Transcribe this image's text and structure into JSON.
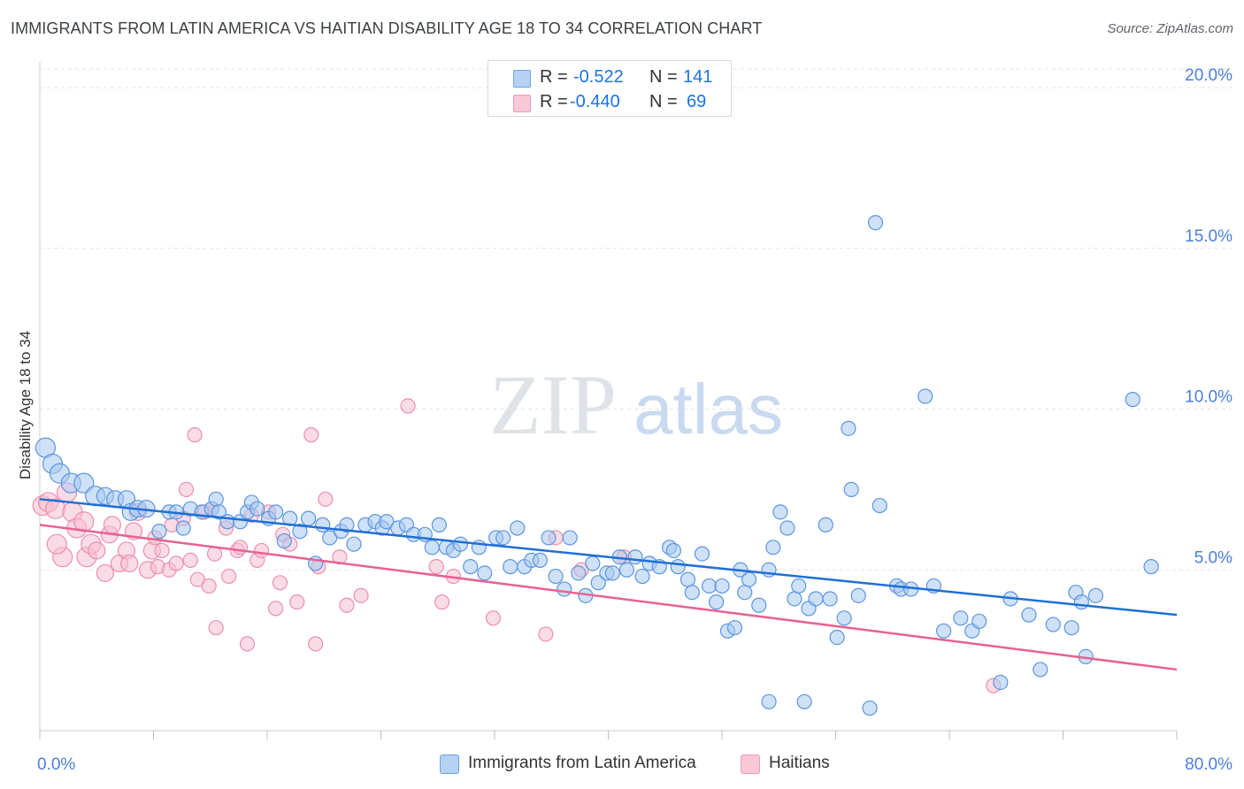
{
  "header": {
    "title": "IMMIGRANTS FROM LATIN AMERICA VS HAITIAN DISABILITY AGE 18 TO 34 CORRELATION CHART",
    "source": "Source: ZipAtlas.com"
  },
  "legend": {
    "rows": [
      {
        "r_label": "R =",
        "r_value": "-0.522",
        "n_label": "N =",
        "n_value": "141"
      },
      {
        "r_label": "R =",
        "r_value": "-0.440",
        "n_label": "N =",
        "n_value": "69"
      }
    ]
  },
  "watermark": {
    "zip": "ZIP",
    "atlas": "atlas"
  },
  "colors": {
    "blue_fill": "#a8c8f0",
    "blue_stroke": "#5b95e0",
    "blue_line": "#1f6fd6",
    "pink_fill": "#f6bfd0",
    "pink_stroke": "#ec8fae",
    "pink_line": "#e8628f",
    "tick_label": "#4a7fd8"
  },
  "chart_data": {
    "type": "scatter",
    "title": "IMMIGRANTS FROM LATIN AMERICA VS HAITIAN DISABILITY AGE 18 TO 34 CORRELATION CHART",
    "xlabel": "",
    "ylabel": "Disability Age 18 to 34",
    "xlim": [
      0,
      80
    ],
    "ylim": [
      0,
      20.8
    ],
    "x_tick_labels": [
      "0.0%",
      "80.0%"
    ],
    "y_ticks": [
      5,
      10,
      15,
      20
    ],
    "y_tick_labels": [
      "5.0%",
      "10.0%",
      "15.0%",
      "20.0%"
    ],
    "grid": "horizontal dashed",
    "legend_position": "top-center",
    "series": [
      {
        "name": "Immigrants from Latin America",
        "trend": {
          "x0": 0,
          "y0": 7.2,
          "x1": 80,
          "y1": 3.6
        },
        "points": [
          [
            0.4,
            8.8
          ],
          [
            0.9,
            8.3
          ],
          [
            1.4,
            8.0
          ],
          [
            2.2,
            7.7
          ],
          [
            3.1,
            7.7
          ],
          [
            3.9,
            7.3
          ],
          [
            4.6,
            7.3
          ],
          [
            5.3,
            7.2
          ],
          [
            6.1,
            7.2
          ],
          [
            6.4,
            6.8
          ],
          [
            6.9,
            6.9
          ],
          [
            7.5,
            6.9
          ],
          [
            8.4,
            6.2
          ],
          [
            9.1,
            6.8
          ],
          [
            9.6,
            6.8
          ],
          [
            10.1,
            6.3
          ],
          [
            10.6,
            6.9
          ],
          [
            11.4,
            6.8
          ],
          [
            12.1,
            6.9
          ],
          [
            12.4,
            7.2
          ],
          [
            12.6,
            6.8
          ],
          [
            13.2,
            6.5
          ],
          [
            14.1,
            6.5
          ],
          [
            14.6,
            6.8
          ],
          [
            14.9,
            7.1
          ],
          [
            15.3,
            6.9
          ],
          [
            16.1,
            6.6
          ],
          [
            16.6,
            6.8
          ],
          [
            17.2,
            5.9
          ],
          [
            17.6,
            6.6
          ],
          [
            18.3,
            6.2
          ],
          [
            18.9,
            6.6
          ],
          [
            19.4,
            5.2
          ],
          [
            19.9,
            6.4
          ],
          [
            20.4,
            6.0
          ],
          [
            21.2,
            6.2
          ],
          [
            21.6,
            6.4
          ],
          [
            22.1,
            5.8
          ],
          [
            22.9,
            6.4
          ],
          [
            23.6,
            6.5
          ],
          [
            24.1,
            6.3
          ],
          [
            24.4,
            6.5
          ],
          [
            25.2,
            6.3
          ],
          [
            25.8,
            6.4
          ],
          [
            26.3,
            6.1
          ],
          [
            27.1,
            6.1
          ],
          [
            27.6,
            5.7
          ],
          [
            28.1,
            6.4
          ],
          [
            28.6,
            5.7
          ],
          [
            29.1,
            5.6
          ],
          [
            29.6,
            5.8
          ],
          [
            30.3,
            5.1
          ],
          [
            30.9,
            5.7
          ],
          [
            31.3,
            4.9
          ],
          [
            32.1,
            6.0
          ],
          [
            32.6,
            6.0
          ],
          [
            33.1,
            5.1
          ],
          [
            33.6,
            6.3
          ],
          [
            34.1,
            5.1
          ],
          [
            34.6,
            5.3
          ],
          [
            35.2,
            5.3
          ],
          [
            35.8,
            6.0
          ],
          [
            36.3,
            4.8
          ],
          [
            36.9,
            4.4
          ],
          [
            37.3,
            6.0
          ],
          [
            37.9,
            4.9
          ],
          [
            38.4,
            4.2
          ],
          [
            38.9,
            5.2
          ],
          [
            39.3,
            4.6
          ],
          [
            39.9,
            4.9
          ],
          [
            40.3,
            4.9
          ],
          [
            40.8,
            5.4
          ],
          [
            41.3,
            5.0
          ],
          [
            41.9,
            5.4
          ],
          [
            42.4,
            4.8
          ],
          [
            42.9,
            5.2
          ],
          [
            43.6,
            5.1
          ],
          [
            44.3,
            5.7
          ],
          [
            44.6,
            5.6
          ],
          [
            44.9,
            5.1
          ],
          [
            45.6,
            4.7
          ],
          [
            45.9,
            4.3
          ],
          [
            46.6,
            5.5
          ],
          [
            47.1,
            4.5
          ],
          [
            47.6,
            4.0
          ],
          [
            48.0,
            4.5
          ],
          [
            48.4,
            3.1
          ],
          [
            48.9,
            3.2
          ],
          [
            49.3,
            5.0
          ],
          [
            49.6,
            4.3
          ],
          [
            49.9,
            4.7
          ],
          [
            50.6,
            3.9
          ],
          [
            51.3,
            5.0
          ],
          [
            51.6,
            5.7
          ],
          [
            52.1,
            6.8
          ],
          [
            52.6,
            6.3
          ],
          [
            53.1,
            4.1
          ],
          [
            53.4,
            4.5
          ],
          [
            54.1,
            3.8
          ],
          [
            54.6,
            4.1
          ],
          [
            55.3,
            6.4
          ],
          [
            55.6,
            4.1
          ],
          [
            56.1,
            2.9
          ],
          [
            56.6,
            3.5
          ],
          [
            56.9,
            9.4
          ],
          [
            57.1,
            7.5
          ],
          [
            57.6,
            4.2
          ],
          [
            58.4,
            0.7
          ],
          [
            58.8,
            15.8
          ],
          [
            59.1,
            7.0
          ],
          [
            60.3,
            4.5
          ],
          [
            60.6,
            4.4
          ],
          [
            61.3,
            4.4
          ],
          [
            62.3,
            10.4
          ],
          [
            62.9,
            4.5
          ],
          [
            63.6,
            3.1
          ],
          [
            64.8,
            3.5
          ],
          [
            65.6,
            3.1
          ],
          [
            66.1,
            3.4
          ],
          [
            67.6,
            1.5
          ],
          [
            68.3,
            4.1
          ],
          [
            69.6,
            3.6
          ],
          [
            70.4,
            1.9
          ],
          [
            71.3,
            3.3
          ],
          [
            72.6,
            3.2
          ],
          [
            72.9,
            4.3
          ],
          [
            73.3,
            4.0
          ],
          [
            73.6,
            2.3
          ],
          [
            74.3,
            4.2
          ],
          [
            76.9,
            10.3
          ],
          [
            78.2,
            5.1
          ],
          [
            53.8,
            0.9
          ],
          [
            51.3,
            0.9
          ]
        ]
      },
      {
        "name": "Haitians",
        "trend": {
          "x0": 0,
          "y0": 6.4,
          "x1": 80,
          "y1": 1.9
        },
        "points": [
          [
            0.2,
            7.0
          ],
          [
            0.6,
            7.1
          ],
          [
            1.1,
            6.9
          ],
          [
            1.6,
            5.4
          ],
          [
            1.9,
            7.4
          ],
          [
            2.3,
            6.8
          ],
          [
            2.6,
            6.3
          ],
          [
            3.1,
            6.5
          ],
          [
            3.3,
            5.4
          ],
          [
            3.6,
            5.8
          ],
          [
            4.0,
            5.6
          ],
          [
            4.6,
            4.9
          ],
          [
            4.9,
            6.1
          ],
          [
            5.1,
            6.4
          ],
          [
            5.6,
            5.2
          ],
          [
            6.1,
            5.6
          ],
          [
            6.3,
            5.2
          ],
          [
            6.6,
            6.2
          ],
          [
            6.9,
            6.8
          ],
          [
            7.6,
            5.0
          ],
          [
            7.9,
            5.6
          ],
          [
            8.1,
            6.0
          ],
          [
            8.3,
            5.1
          ],
          [
            8.6,
            5.6
          ],
          [
            9.1,
            5.0
          ],
          [
            9.3,
            6.4
          ],
          [
            9.6,
            5.2
          ],
          [
            10.1,
            6.6
          ],
          [
            10.3,
            7.5
          ],
          [
            10.6,
            5.3
          ],
          [
            11.1,
            4.7
          ],
          [
            11.6,
            6.8
          ],
          [
            11.9,
            4.5
          ],
          [
            12.1,
            6.9
          ],
          [
            12.3,
            5.5
          ],
          [
            12.4,
            3.2
          ],
          [
            13.1,
            6.3
          ],
          [
            13.3,
            4.8
          ],
          [
            13.9,
            5.6
          ],
          [
            14.1,
            5.7
          ],
          [
            14.6,
            2.7
          ],
          [
            14.9,
            6.7
          ],
          [
            15.3,
            5.3
          ],
          [
            15.6,
            5.6
          ],
          [
            16.1,
            6.8
          ],
          [
            16.6,
            3.8
          ],
          [
            16.9,
            4.6
          ],
          [
            17.1,
            6.1
          ],
          [
            17.6,
            5.8
          ],
          [
            18.1,
            4.0
          ],
          [
            19.1,
            9.2
          ],
          [
            19.4,
            2.7
          ],
          [
            19.6,
            5.1
          ],
          [
            20.1,
            7.2
          ],
          [
            21.1,
            5.4
          ],
          [
            21.6,
            3.9
          ],
          [
            22.6,
            4.2
          ],
          [
            10.9,
            9.2
          ],
          [
            25.9,
            10.1
          ],
          [
            27.9,
            5.1
          ],
          [
            28.3,
            4.0
          ],
          [
            29.1,
            4.8
          ],
          [
            31.9,
            3.5
          ],
          [
            35.6,
            3.0
          ],
          [
            36.3,
            6.0
          ],
          [
            38.1,
            5.0
          ],
          [
            41.1,
            5.4
          ],
          [
            67.1,
            1.4
          ],
          [
            1.2,
            5.8
          ]
        ]
      }
    ]
  }
}
